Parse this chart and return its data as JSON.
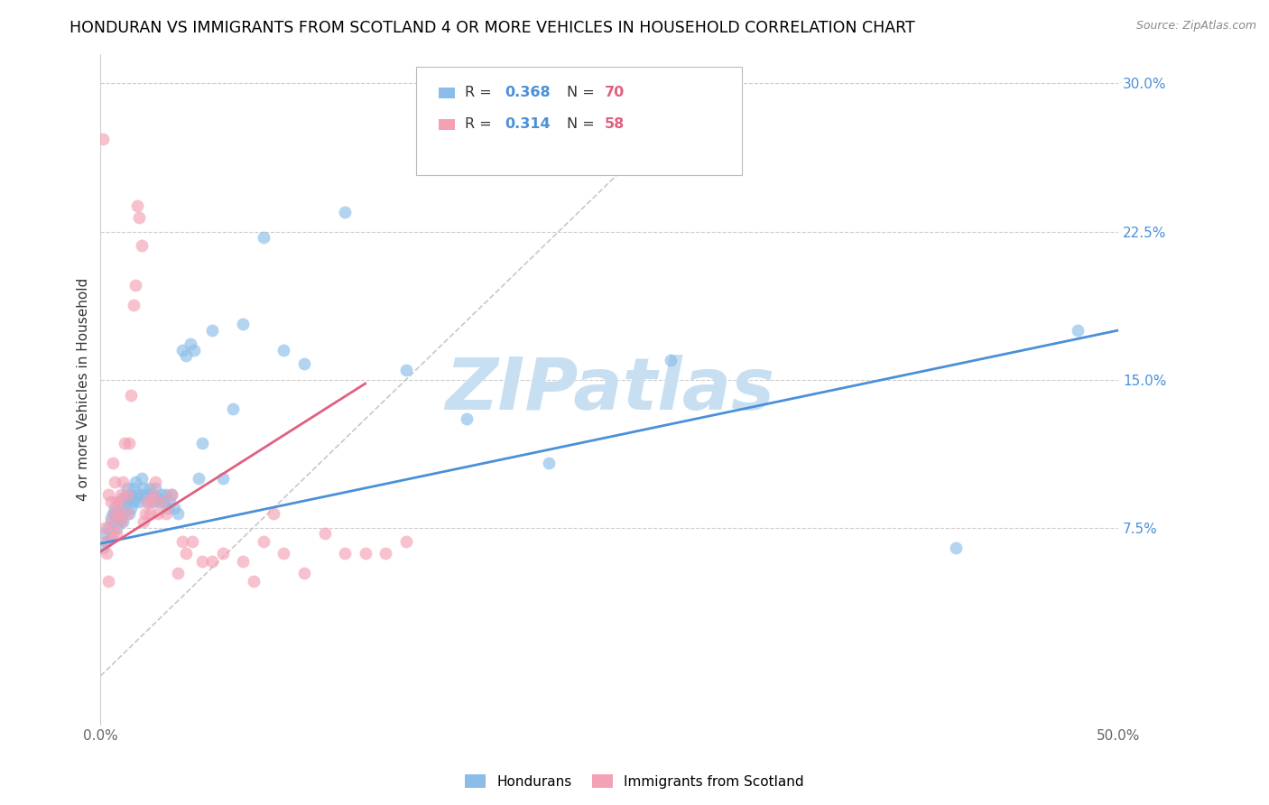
{
  "title": "HONDURAN VS IMMIGRANTS FROM SCOTLAND 4 OR MORE VEHICLES IN HOUSEHOLD CORRELATION CHART",
  "source": "Source: ZipAtlas.com",
  "ylabel": "4 or more Vehicles in Household",
  "watermark_line1": "ZIP",
  "watermark_line2": "atlas",
  "xlim": [
    0.0,
    0.5
  ],
  "ylim": [
    -0.025,
    0.315
  ],
  "xticks": [
    0.0,
    0.1,
    0.2,
    0.3,
    0.4,
    0.5
  ],
  "xticklabels": [
    "0.0%",
    "",
    "",
    "",
    "",
    "50.0%"
  ],
  "yticks": [
    0.075,
    0.15,
    0.225,
    0.3
  ],
  "yticklabels": [
    "7.5%",
    "15.0%",
    "22.5%",
    "30.0%"
  ],
  "legend_blue_R": "0.368",
  "legend_blue_N": "70",
  "legend_pink_R": "0.314",
  "legend_pink_N": "58",
  "legend_label_blue": "Hondurans",
  "legend_label_pink": "Immigrants from Scotland",
  "blue_color": "#8bbde8",
  "pink_color": "#f4a0b5",
  "blue_line_color": "#4a90d9",
  "pink_line_color": "#e06080",
  "dashed_line_color": "#c8c8c8",
  "title_fontsize": 12.5,
  "axis_label_fontsize": 11,
  "tick_fontsize": 11,
  "watermark_color": "#c8dff2",
  "blue_scatter_x": [
    0.001,
    0.002,
    0.003,
    0.004,
    0.005,
    0.005,
    0.006,
    0.007,
    0.007,
    0.008,
    0.008,
    0.009,
    0.009,
    0.01,
    0.01,
    0.011,
    0.011,
    0.012,
    0.012,
    0.013,
    0.013,
    0.014,
    0.014,
    0.015,
    0.015,
    0.016,
    0.016,
    0.017,
    0.017,
    0.018,
    0.019,
    0.02,
    0.02,
    0.021,
    0.022,
    0.023,
    0.024,
    0.025,
    0.026,
    0.027,
    0.028,
    0.029,
    0.03,
    0.031,
    0.032,
    0.033,
    0.034,
    0.035,
    0.036,
    0.038,
    0.04,
    0.042,
    0.044,
    0.046,
    0.048,
    0.05,
    0.055,
    0.06,
    0.065,
    0.07,
    0.08,
    0.09,
    0.1,
    0.12,
    0.15,
    0.18,
    0.22,
    0.28,
    0.42,
    0.48
  ],
  "blue_scatter_y": [
    0.065,
    0.072,
    0.068,
    0.075,
    0.08,
    0.07,
    0.082,
    0.078,
    0.085,
    0.075,
    0.082,
    0.08,
    0.088,
    0.079,
    0.085,
    0.09,
    0.078,
    0.083,
    0.09,
    0.088,
    0.095,
    0.082,
    0.09,
    0.085,
    0.092,
    0.088,
    0.095,
    0.09,
    0.098,
    0.092,
    0.088,
    0.092,
    0.1,
    0.095,
    0.092,
    0.088,
    0.095,
    0.092,
    0.088,
    0.095,
    0.09,
    0.088,
    0.092,
    0.088,
    0.092,
    0.085,
    0.088,
    0.092,
    0.085,
    0.082,
    0.165,
    0.162,
    0.168,
    0.165,
    0.1,
    0.118,
    0.175,
    0.1,
    0.135,
    0.178,
    0.222,
    0.165,
    0.158,
    0.235,
    0.155,
    0.13,
    0.108,
    0.16,
    0.065,
    0.175
  ],
  "pink_scatter_x": [
    0.001,
    0.002,
    0.003,
    0.003,
    0.004,
    0.004,
    0.005,
    0.005,
    0.006,
    0.006,
    0.007,
    0.007,
    0.008,
    0.008,
    0.009,
    0.009,
    0.01,
    0.01,
    0.011,
    0.012,
    0.013,
    0.013,
    0.014,
    0.015,
    0.016,
    0.017,
    0.018,
    0.019,
    0.02,
    0.021,
    0.022,
    0.023,
    0.024,
    0.025,
    0.026,
    0.027,
    0.028,
    0.03,
    0.032,
    0.035,
    0.038,
    0.04,
    0.042,
    0.045,
    0.05,
    0.055,
    0.06,
    0.07,
    0.075,
    0.08,
    0.085,
    0.09,
    0.1,
    0.11,
    0.12,
    0.13,
    0.14,
    0.15
  ],
  "pink_scatter_y": [
    0.272,
    0.075,
    0.068,
    0.062,
    0.092,
    0.048,
    0.078,
    0.088,
    0.072,
    0.108,
    0.098,
    0.082,
    0.072,
    0.088,
    0.082,
    0.088,
    0.078,
    0.092,
    0.098,
    0.118,
    0.082,
    0.092,
    0.118,
    0.142,
    0.188,
    0.198,
    0.238,
    0.232,
    0.218,
    0.078,
    0.082,
    0.088,
    0.082,
    0.088,
    0.092,
    0.098,
    0.082,
    0.088,
    0.082,
    0.092,
    0.052,
    0.068,
    0.062,
    0.068,
    0.058,
    0.058,
    0.062,
    0.058,
    0.048,
    0.068,
    0.082,
    0.062,
    0.052,
    0.072,
    0.062,
    0.062,
    0.062,
    0.068
  ],
  "blue_line_x": [
    0.0,
    0.5
  ],
  "blue_line_y": [
    0.067,
    0.175
  ],
  "pink_line_x": [
    0.0,
    0.13
  ],
  "pink_line_y": [
    0.063,
    0.148
  ],
  "diag_line_x": [
    0.0,
    0.3
  ],
  "diag_line_y": [
    0.0,
    0.3
  ]
}
